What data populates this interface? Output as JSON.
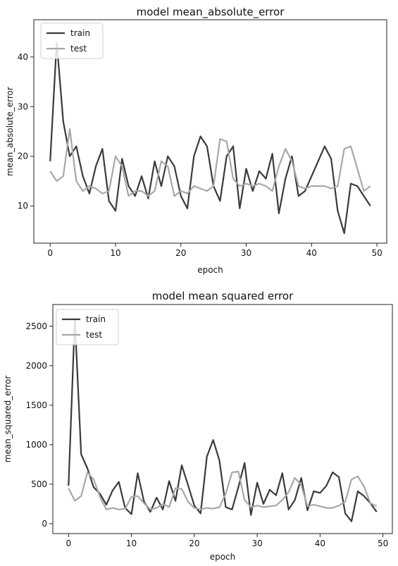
{
  "chart_data": [
    {
      "type": "line",
      "title": "model mean_absolute_error",
      "xlabel": "epoch",
      "ylabel": "mean_absolute_error",
      "xlim": [
        -2.5,
        51.5
      ],
      "ylim": [
        2.5,
        47.5
      ],
      "xticks": [
        0,
        10,
        20,
        30,
        40,
        50
      ],
      "yticks": [
        10,
        20,
        30,
        40
      ],
      "grid": false,
      "legend_position": "top-left",
      "x": [
        0,
        1,
        2,
        3,
        4,
        5,
        6,
        7,
        8,
        9,
        10,
        11,
        12,
        13,
        14,
        15,
        16,
        17,
        18,
        19,
        20,
        21,
        22,
        23,
        24,
        25,
        26,
        27,
        28,
        29,
        30,
        31,
        32,
        33,
        34,
        35,
        36,
        37,
        38,
        39,
        40,
        41,
        42,
        43,
        44,
        45,
        46,
        47,
        48,
        49
      ],
      "series": [
        {
          "name": "train",
          "color": "#3a3a3a",
          "values": [
            19,
            43,
            27,
            20,
            22,
            16,
            12.5,
            18,
            21.5,
            11,
            9,
            19.5,
            14,
            12,
            16,
            11.5,
            19,
            14,
            20,
            18,
            12,
            9.5,
            20,
            24,
            22,
            14,
            11,
            20,
            22,
            9.5,
            17.5,
            13,
            17,
            15.5,
            20.5,
            8.5,
            15.5,
            20,
            12,
            13,
            16,
            19,
            22,
            19.5,
            9,
            4.5,
            14.5,
            14,
            12,
            10
          ]
        },
        {
          "name": "test",
          "color": "#a8a8a8",
          "values": [
            17,
            15,
            16,
            25.5,
            15,
            13,
            14,
            13.5,
            12.5,
            13,
            20,
            18,
            12,
            13,
            13,
            12,
            13,
            19,
            18,
            12,
            13,
            12.5,
            14,
            13.5,
            13,
            14,
            23.5,
            23,
            15.5,
            14,
            14.5,
            14,
            14.5,
            14,
            13,
            18,
            21.5,
            19,
            14,
            13.5,
            14,
            14,
            14,
            13.5,
            14,
            21.5,
            22,
            17.5,
            13,
            14
          ]
        }
      ]
    },
    {
      "type": "line",
      "title": "model mean squared error",
      "xlabel": "epoch",
      "ylabel": "mean_squared_error",
      "xlim": [
        -2.5,
        51.5
      ],
      "ylim": [
        -125,
        2775
      ],
      "xticks": [
        0,
        10,
        20,
        30,
        40,
        50
      ],
      "yticks": [
        0,
        500,
        1000,
        1500,
        2000,
        2500
      ],
      "grid": false,
      "legend_position": "top-left",
      "x": [
        0,
        1,
        2,
        3,
        4,
        5,
        6,
        7,
        8,
        9,
        10,
        11,
        12,
        13,
        14,
        15,
        16,
        17,
        18,
        19,
        20,
        21,
        22,
        23,
        24,
        25,
        26,
        27,
        28,
        29,
        30,
        31,
        32,
        33,
        34,
        35,
        36,
        37,
        38,
        39,
        40,
        41,
        42,
        43,
        44,
        45,
        46,
        47,
        48,
        49
      ],
      "series": [
        {
          "name": "train",
          "color": "#3a3a3a",
          "values": [
            480,
            2600,
            880,
            700,
            460,
            380,
            240,
            420,
            530,
            200,
            120,
            640,
            280,
            150,
            330,
            180,
            540,
            290,
            740,
            490,
            230,
            130,
            850,
            1060,
            800,
            210,
            180,
            460,
            770,
            110,
            520,
            250,
            430,
            360,
            640,
            180,
            300,
            580,
            170,
            410,
            390,
            480,
            650,
            590,
            130,
            30,
            410,
            350,
            260,
            150
          ]
        },
        {
          "name": "test",
          "color": "#a8a8a8",
          "values": [
            450,
            290,
            350,
            650,
            560,
            340,
            180,
            200,
            180,
            190,
            340,
            350,
            260,
            180,
            200,
            250,
            210,
            450,
            440,
            280,
            200,
            180,
            200,
            190,
            210,
            380,
            650,
            660,
            300,
            210,
            230,
            210,
            220,
            230,
            300,
            400,
            580,
            490,
            220,
            240,
            220,
            200,
            200,
            230,
            280,
            560,
            600,
            470,
            260,
            220
          ]
        }
      ]
    }
  ]
}
